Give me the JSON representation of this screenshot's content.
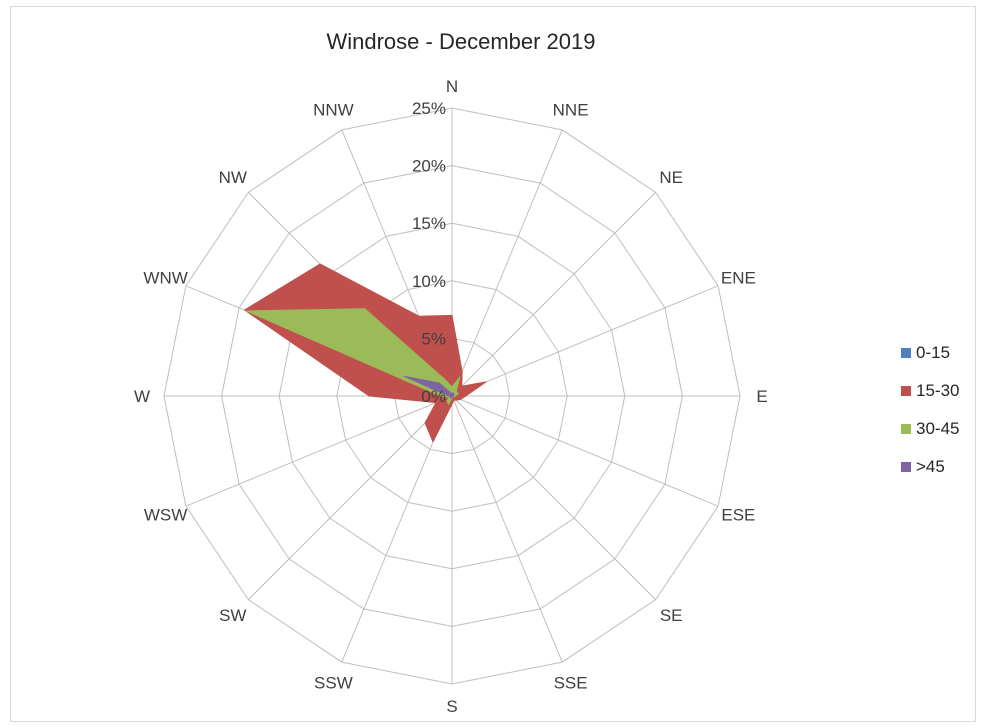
{
  "chart_data": {
    "type": "radar",
    "title": "Windrose - December 2019",
    "directions": [
      "N",
      "NNE",
      "NE",
      "ENE",
      "E",
      "ESE",
      "SE",
      "SSE",
      "S",
      "SSW",
      "SW",
      "WSW",
      "W",
      "WNW",
      "NW",
      "NNW"
    ],
    "radial_ticks": [
      "0%",
      "5%",
      "10%",
      "15%",
      "20%",
      "25%"
    ],
    "rmax": 25,
    "legend_position": "right",
    "series": [
      {
        "name": "0-15",
        "color": "#4f81bd",
        "values": [
          0.2,
          0.1,
          0.1,
          0.1,
          0.1,
          0.1,
          0.1,
          0.1,
          0.1,
          0.1,
          0.1,
          0.1,
          0.2,
          0.3,
          0.3,
          0.3
        ]
      },
      {
        "name": "15-30",
        "color": "#c0504d",
        "values": [
          7,
          2.3,
          1.2,
          3.2,
          1.2,
          0.8,
          0.5,
          0.4,
          0.7,
          4.3,
          3.3,
          1.5,
          7.2,
          19.5,
          16.2,
          7.5
        ]
      },
      {
        "name": "30-45",
        "color": "#9bbb59",
        "values": [
          0.8,
          1.8,
          0.5,
          0.6,
          0.3,
          0.2,
          0.1,
          0.1,
          0.2,
          0.8,
          0.6,
          0.3,
          1.0,
          19.3,
          10.7,
          1.5
        ]
      },
      {
        "name": ">45",
        "color": "#8064a2",
        "values": [
          0.2,
          0.3,
          0.2,
          0.2,
          0.1,
          0.1,
          0.1,
          0.1,
          0.1,
          0.2,
          0.2,
          0.1,
          0.3,
          4.5,
          1.6,
          0.3
        ]
      }
    ]
  }
}
